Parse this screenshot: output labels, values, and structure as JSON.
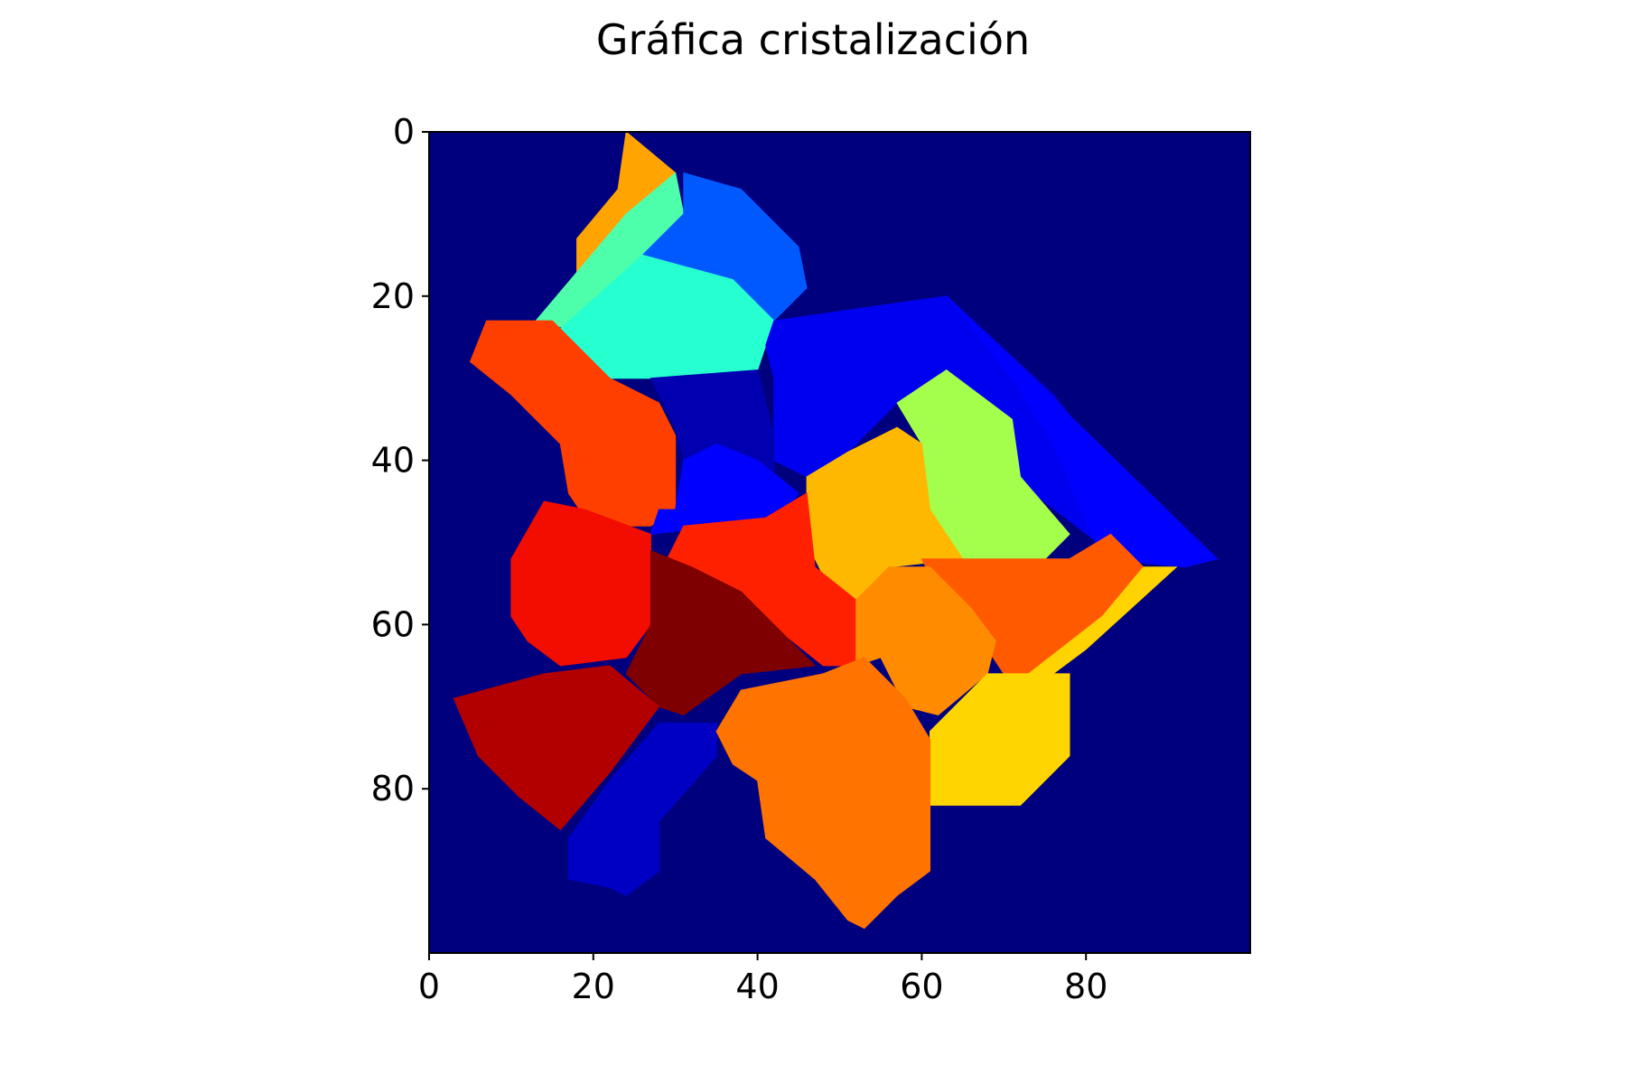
{
  "chart_data": {
    "type": "heatmap",
    "title": "Gráfica cristalización",
    "colormap": "jet",
    "background_color": "#00007f",
    "xlim": [
      0,
      100
    ],
    "ylim": [
      100,
      0
    ],
    "x_ticks": [
      0,
      20,
      40,
      60,
      80
    ],
    "y_ticks": [
      0,
      20,
      40,
      60,
      80
    ],
    "x_tick_labels": [
      "0",
      "20",
      "40",
      "60",
      "80"
    ],
    "y_tick_labels": [
      "0",
      "20",
      "40",
      "60",
      "80"
    ],
    "grid": false,
    "regions": [
      {
        "name": "grain-orange-top",
        "color": "#ffa400",
        "points": [
          [
            24,
            0
          ],
          [
            30,
            5
          ],
          [
            24,
            10
          ],
          [
            18,
            17
          ],
          [
            18,
            13
          ],
          [
            23,
            7
          ]
        ]
      },
      {
        "name": "grain-seafoam",
        "color": "#4dffaa",
        "points": [
          [
            30,
            5
          ],
          [
            31,
            10
          ],
          [
            26,
            15
          ],
          [
            17,
            24
          ],
          [
            13,
            23
          ],
          [
            24,
            10
          ]
        ]
      },
      {
        "name": "grain-azure",
        "color": "#0058ff",
        "points": [
          [
            31,
            5
          ],
          [
            38,
            7
          ],
          [
            45,
            14
          ],
          [
            46,
            19
          ],
          [
            42,
            23
          ],
          [
            37,
            18
          ],
          [
            26,
            15
          ],
          [
            31,
            10
          ]
        ]
      },
      {
        "name": "grain-aquamarine",
        "color": "#26ffd0",
        "points": [
          [
            26,
            15
          ],
          [
            37,
            18
          ],
          [
            42,
            23
          ],
          [
            40,
            29
          ],
          [
            27,
            30
          ],
          [
            22,
            30
          ],
          [
            16,
            24
          ]
        ]
      },
      {
        "name": "grain-orangered-top",
        "color": "#ff3f00",
        "points": [
          [
            7,
            23
          ],
          [
            15,
            23
          ],
          [
            22,
            30
          ],
          [
            28,
            33
          ],
          [
            30,
            37
          ],
          [
            30,
            46
          ],
          [
            27,
            48
          ],
          [
            23,
            48
          ],
          [
            19,
            47
          ],
          [
            17,
            44
          ],
          [
            16,
            38
          ],
          [
            10,
            32
          ],
          [
            5,
            28
          ]
        ]
      },
      {
        "name": "grain-blue-big",
        "color": "#0000f0",
        "points": [
          [
            42,
            23
          ],
          [
            63,
            20
          ],
          [
            76,
            32
          ],
          [
            91,
            51
          ],
          [
            84,
            52
          ],
          [
            71,
            42
          ],
          [
            63,
            29
          ],
          [
            57,
            33
          ],
          [
            51,
            39
          ],
          [
            46,
            42
          ],
          [
            42,
            40
          ],
          [
            42,
            30
          ],
          [
            41,
            26
          ]
        ]
      },
      {
        "name": "grain-blue-right-edge",
        "color": "#0000ff",
        "points": [
          [
            63,
            20
          ],
          [
            96,
            52
          ],
          [
            92,
            53
          ],
          [
            82,
            52
          ],
          [
            76,
            38
          ],
          [
            71,
            30
          ]
        ]
      },
      {
        "name": "grain-navy-dark",
        "color": "#0000b0",
        "points": [
          [
            27,
            30
          ],
          [
            40,
            29
          ],
          [
            42,
            37
          ],
          [
            42,
            42
          ],
          [
            35,
            38
          ],
          [
            31,
            40
          ],
          [
            30,
            36
          ]
        ]
      },
      {
        "name": "grain-blue-mid",
        "color": "#0000ff",
        "points": [
          [
            31,
            40
          ],
          [
            35,
            38
          ],
          [
            40,
            40
          ],
          [
            45,
            44
          ],
          [
            43,
            47
          ],
          [
            27,
            49
          ],
          [
            28,
            46
          ],
          [
            30,
            46
          ]
        ]
      },
      {
        "name": "grain-lime",
        "color": "#a4ff4d",
        "points": [
          [
            57,
            33
          ],
          [
            63,
            29
          ],
          [
            71,
            35
          ],
          [
            72,
            42
          ],
          [
            78,
            49
          ],
          [
            75,
            52
          ],
          [
            64,
            52
          ],
          [
            61,
            46
          ],
          [
            60,
            38
          ]
        ]
      },
      {
        "name": "grain-amber",
        "color": "#ffb800",
        "points": [
          [
            46,
            42
          ],
          [
            51,
            39
          ],
          [
            57,
            36
          ],
          [
            60,
            38
          ],
          [
            61,
            46
          ],
          [
            65,
            52
          ],
          [
            56,
            53
          ],
          [
            52,
            57
          ],
          [
            48,
            54
          ],
          [
            46,
            50
          ]
        ]
      },
      {
        "name": "grain-red-left",
        "color": "#f20d00",
        "points": [
          [
            14,
            45
          ],
          [
            19,
            46
          ],
          [
            27,
            49
          ],
          [
            27,
            60
          ],
          [
            24,
            64
          ],
          [
            16,
            65
          ],
          [
            12,
            62
          ],
          [
            10,
            59
          ],
          [
            10,
            52
          ]
        ]
      },
      {
        "name": "grain-redorange-center",
        "color": "#ff2000",
        "points": [
          [
            31,
            48
          ],
          [
            41,
            47
          ],
          [
            46,
            44
          ],
          [
            47,
            53
          ],
          [
            52,
            57
          ],
          [
            52,
            65
          ],
          [
            48,
            65
          ],
          [
            38,
            57
          ],
          [
            29,
            52
          ]
        ]
      },
      {
        "name": "grain-maroon",
        "color": "#7f0000",
        "points": [
          [
            27,
            51
          ],
          [
            32,
            53
          ],
          [
            38,
            56
          ],
          [
            47,
            65
          ],
          [
            38,
            66
          ],
          [
            31,
            71
          ],
          [
            28,
            70
          ],
          [
            24,
            66
          ],
          [
            27,
            60
          ]
        ]
      },
      {
        "name": "grain-orange-right",
        "color": "#ff5a00",
        "points": [
          [
            60,
            52
          ],
          [
            78,
            52
          ],
          [
            83,
            49
          ],
          [
            87,
            53
          ],
          [
            82,
            59
          ],
          [
            73,
            66
          ],
          [
            70,
            66
          ],
          [
            66,
            60
          ],
          [
            62,
            56
          ]
        ]
      },
      {
        "name": "grain-darkorange",
        "color": "#ff8c00",
        "points": [
          [
            56,
            53
          ],
          [
            61,
            53
          ],
          [
            66,
            58
          ],
          [
            69,
            62
          ],
          [
            68,
            66
          ],
          [
            62,
            71
          ],
          [
            58,
            70
          ],
          [
            55,
            64
          ],
          [
            52,
            65
          ],
          [
            52,
            57
          ]
        ]
      },
      {
        "name": "grain-gold-strip",
        "color": "#ffd300",
        "points": [
          [
            87,
            53
          ],
          [
            91,
            53
          ],
          [
            80,
            63
          ],
          [
            76,
            66
          ],
          [
            73,
            66
          ],
          [
            82,
            59
          ]
        ]
      },
      {
        "name": "grain-gold",
        "color": "#ffd500",
        "points": [
          [
            68,
            66
          ],
          [
            78,
            66
          ],
          [
            78,
            76
          ],
          [
            72,
            82
          ],
          [
            61,
            82
          ],
          [
            61,
            73
          ]
        ]
      },
      {
        "name": "grain-darkred",
        "color": "#b20000",
        "points": [
          [
            3,
            69
          ],
          [
            14,
            66
          ],
          [
            22,
            65
          ],
          [
            28,
            70
          ],
          [
            22,
            78
          ],
          [
            16,
            85
          ],
          [
            11,
            81
          ],
          [
            6,
            76
          ]
        ]
      },
      {
        "name": "grain-navy-bottom",
        "color": "#0000c4",
        "points": [
          [
            28,
            72
          ],
          [
            35,
            72
          ],
          [
            35,
            76
          ],
          [
            28,
            84
          ],
          [
            28,
            90
          ],
          [
            24,
            93
          ],
          [
            22,
            92
          ],
          [
            17,
            91
          ],
          [
            17,
            86
          ],
          [
            22,
            79
          ]
        ]
      },
      {
        "name": "grain-orange-bottom",
        "color": "#ff7300",
        "points": [
          [
            48,
            66
          ],
          [
            53,
            64
          ],
          [
            58,
            69
          ],
          [
            61,
            74
          ],
          [
            61,
            90
          ],
          [
            57,
            93
          ],
          [
            53,
            97
          ],
          [
            51,
            96
          ],
          [
            47,
            91
          ],
          [
            41,
            86
          ],
          [
            40,
            79
          ],
          [
            37,
            77
          ],
          [
            35,
            73
          ],
          [
            38,
            68
          ],
          [
            43,
            67
          ]
        ]
      }
    ]
  }
}
